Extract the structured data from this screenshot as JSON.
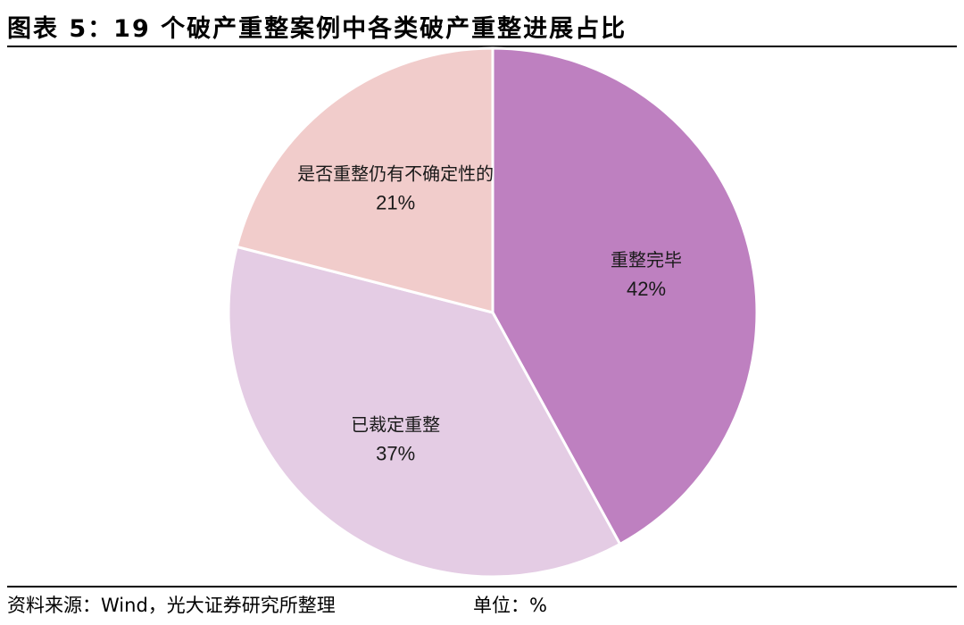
{
  "title": "图表 5：19 个破产重整案例中各类破产重整进展占比",
  "chart_data": {
    "type": "pie",
    "categories": [
      "重整完毕",
      "已裁定重整",
      "是否重整仍有不确定性的"
    ],
    "values": [
      42,
      37,
      21
    ],
    "value_labels": [
      "42%",
      "37%",
      "21%"
    ],
    "colors": [
      "#be80c0",
      "#e4cce4",
      "#f1cccb"
    ],
    "legend": "none"
  },
  "footer": {
    "source": "资料来源：Wind，光大证券研究所整理",
    "unit": "单位：%"
  }
}
